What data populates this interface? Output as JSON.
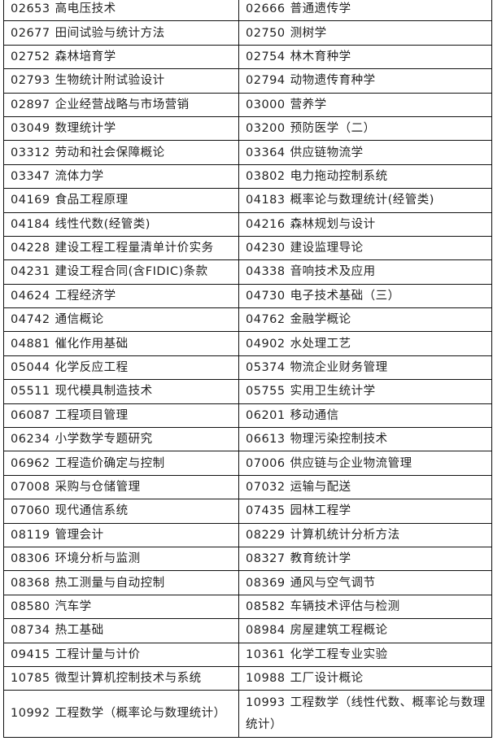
{
  "rows": [
    [
      {
        "code": "02653",
        "name": "高电压技术"
      },
      {
        "code": "02666",
        "name": "普通遗传学"
      }
    ],
    [
      {
        "code": "02677",
        "name": "田间试验与统计方法"
      },
      {
        "code": "02750",
        "name": "测树学"
      }
    ],
    [
      {
        "code": "02752",
        "name": "森林培育学"
      },
      {
        "code": "02754",
        "name": "林木育种学"
      }
    ],
    [
      {
        "code": "02793",
        "name": "生物统计附试验设计"
      },
      {
        "code": "02794",
        "name": "动物遗传育种学"
      }
    ],
    [
      {
        "code": "02897",
        "name": "企业经营战略与市场营销"
      },
      {
        "code": "03000",
        "name": "营养学"
      }
    ],
    [
      {
        "code": "03049",
        "name": "数理统计学"
      },
      {
        "code": "03200",
        "name": "预防医学（二）"
      }
    ],
    [
      {
        "code": "03312",
        "name": "劳动和社会保障概论"
      },
      {
        "code": "03364",
        "name": "供应链物流学"
      }
    ],
    [
      {
        "code": "03347",
        "name": "流体力学"
      },
      {
        "code": "03802",
        "name": "电力拖动控制系统"
      }
    ],
    [
      {
        "code": "04169",
        "name": "食品工程原理"
      },
      {
        "code": "04183",
        "name": "概率论与数理统计(经管类)"
      }
    ],
    [
      {
        "code": "04184",
        "name": "线性代数(经管类)"
      },
      {
        "code": "04216",
        "name": "森林规划与设计"
      }
    ],
    [
      {
        "code": "04228",
        "name": "建设工程工程量清单计价实务"
      },
      {
        "code": "04230",
        "name": "建设监理导论"
      }
    ],
    [
      {
        "code": "04231",
        "name": "建设工程合同(含FIDIC)条款"
      },
      {
        "code": "04338",
        "name": "音响技术及应用"
      }
    ],
    [
      {
        "code": "04624",
        "name": "工程经济学"
      },
      {
        "code": "04730",
        "name": "电子技术基础（三）"
      }
    ],
    [
      {
        "code": "04742",
        "name": "通信概论"
      },
      {
        "code": "04762",
        "name": "金融学概论"
      }
    ],
    [
      {
        "code": "04881",
        "name": "催化作用基础"
      },
      {
        "code": "04902",
        "name": "水处理工艺"
      }
    ],
    [
      {
        "code": "05044",
        "name": "化学反应工程"
      },
      {
        "code": "05374",
        "name": "物流企业财务管理"
      }
    ],
    [
      {
        "code": "05511",
        "name": "现代模具制造技术"
      },
      {
        "code": "05755",
        "name": "实用卫生统计学"
      }
    ],
    [
      {
        "code": "06087",
        "name": "工程项目管理"
      },
      {
        "code": "06201",
        "name": "移动通信"
      }
    ],
    [
      {
        "code": "06234",
        "name": "小学数学专题研究"
      },
      {
        "code": "06613",
        "name": "物理污染控制技术"
      }
    ],
    [
      {
        "code": "06962",
        "name": "工程造价确定与控制"
      },
      {
        "code": "07006",
        "name": "供应链与企业物流管理"
      }
    ],
    [
      {
        "code": "07008",
        "name": "采购与仓储管理"
      },
      {
        "code": "07032",
        "name": "运输与配送"
      }
    ],
    [
      {
        "code": "07060",
        "name": "现代通信系统"
      },
      {
        "code": "07435",
        "name": "园林工程学"
      }
    ],
    [
      {
        "code": "08119",
        "name": "管理会计"
      },
      {
        "code": "08229",
        "name": "计算机统计分析方法"
      }
    ],
    [
      {
        "code": "08306",
        "name": "环境分析与监测"
      },
      {
        "code": "08327",
        "name": "教育统计学"
      }
    ],
    [
      {
        "code": "08368",
        "name": "热工测量与自动控制"
      },
      {
        "code": "08369",
        "name": "通风与空气调节"
      }
    ],
    [
      {
        "code": "08580",
        "name": "汽车学"
      },
      {
        "code": "08582",
        "name": "车辆技术评估与检测"
      }
    ],
    [
      {
        "code": "08734",
        "name": "热工基础"
      },
      {
        "code": "08984",
        "name": "房屋建筑工程概论"
      }
    ],
    [
      {
        "code": "09415",
        "name": "工程计量与计价"
      },
      {
        "code": "10361",
        "name": "化学工程专业实验"
      }
    ],
    [
      {
        "code": "10785",
        "name": "微型计算机控制技术与系统"
      },
      {
        "code": "10988",
        "name": "工厂设计概论"
      }
    ],
    [
      {
        "code": "10992",
        "name": "工程数学（概率论与数理统计）"
      },
      {
        "code": "10993",
        "name": "工程数学（线性代数、概率论与数理统计）"
      }
    ]
  ]
}
